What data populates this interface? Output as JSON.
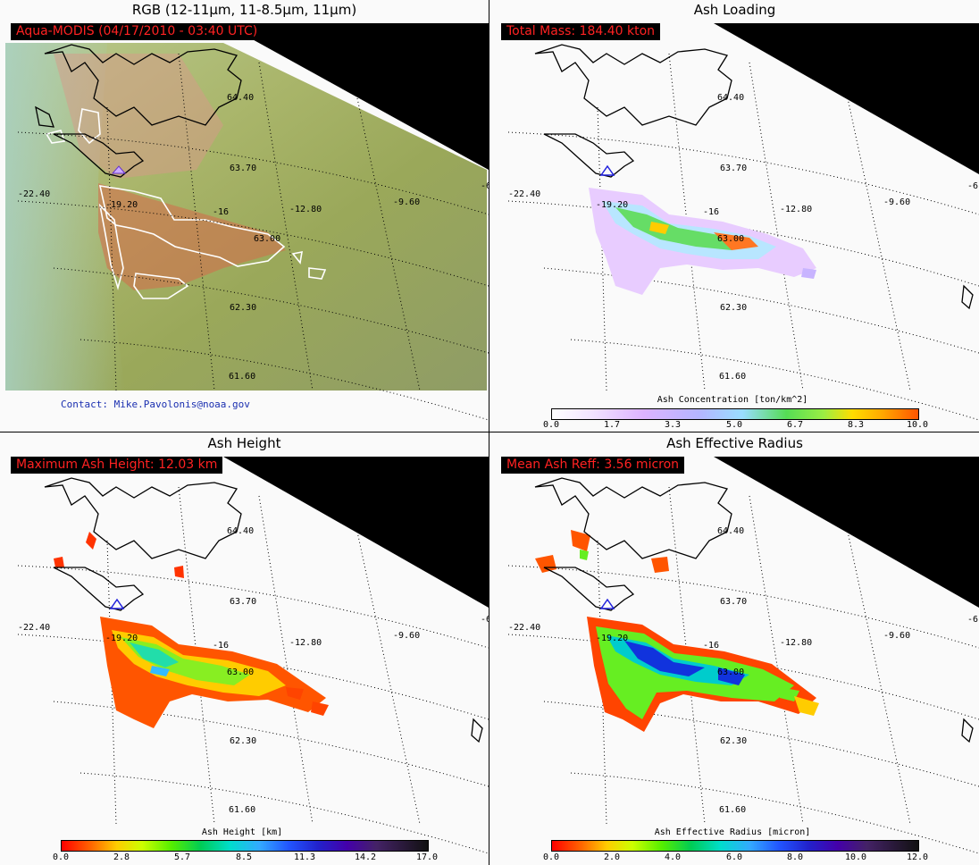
{
  "panels": {
    "rgb": {
      "title": "RGB (12-11μm, 11-8.5μm, 11μm)",
      "info": "Aqua-MODIS  (04/17/2010 - 03:40 UTC)",
      "contact": "Contact: Mike.Pavolonis@noaa.gov"
    },
    "loading": {
      "title": "Ash Loading",
      "info": "Total Mass: 184.40 kton",
      "colorbar_title": "Ash Concentration [ton/km^2]",
      "colorbar_ticks": [
        "0.0",
        "1.7",
        "3.3",
        "5.0",
        "6.7",
        "8.3",
        "10.0"
      ]
    },
    "height": {
      "title": "Ash Height",
      "info": "Maximum Ash Height: 12.03 km",
      "colorbar_title": "Ash Height [km]",
      "colorbar_ticks": [
        "0.0",
        "2.8",
        "5.7",
        "8.5",
        "11.3",
        "14.2",
        "17.0"
      ]
    },
    "radius": {
      "title": "Ash Effective Radius",
      "info": "Mean Ash Reff: 3.56 micron",
      "colorbar_title": "Ash Effective Radius [micron]",
      "colorbar_ticks": [
        "0.0",
        "2.0",
        "4.0",
        "6.0",
        "8.0",
        "10.0",
        "12.0"
      ]
    }
  },
  "grid_labels": {
    "lat_64_4": "64.40",
    "lat_63_7": "63.70",
    "lat_63_0": "63.00",
    "lat_62_3": "62.30",
    "lat_61_6": "61.60",
    "lon_m22_4": "-22.40",
    "lon_m19_2": "-19.20",
    "lon_m16": "-16",
    "lon_m12_8": "-12.80",
    "lon_m9_6": "-9.60",
    "lon_edge": "-6"
  },
  "colors": {
    "info_text": "#ff2222",
    "contact_text": "#1a2fb0",
    "volcano_marker": "#2020dd"
  }
}
